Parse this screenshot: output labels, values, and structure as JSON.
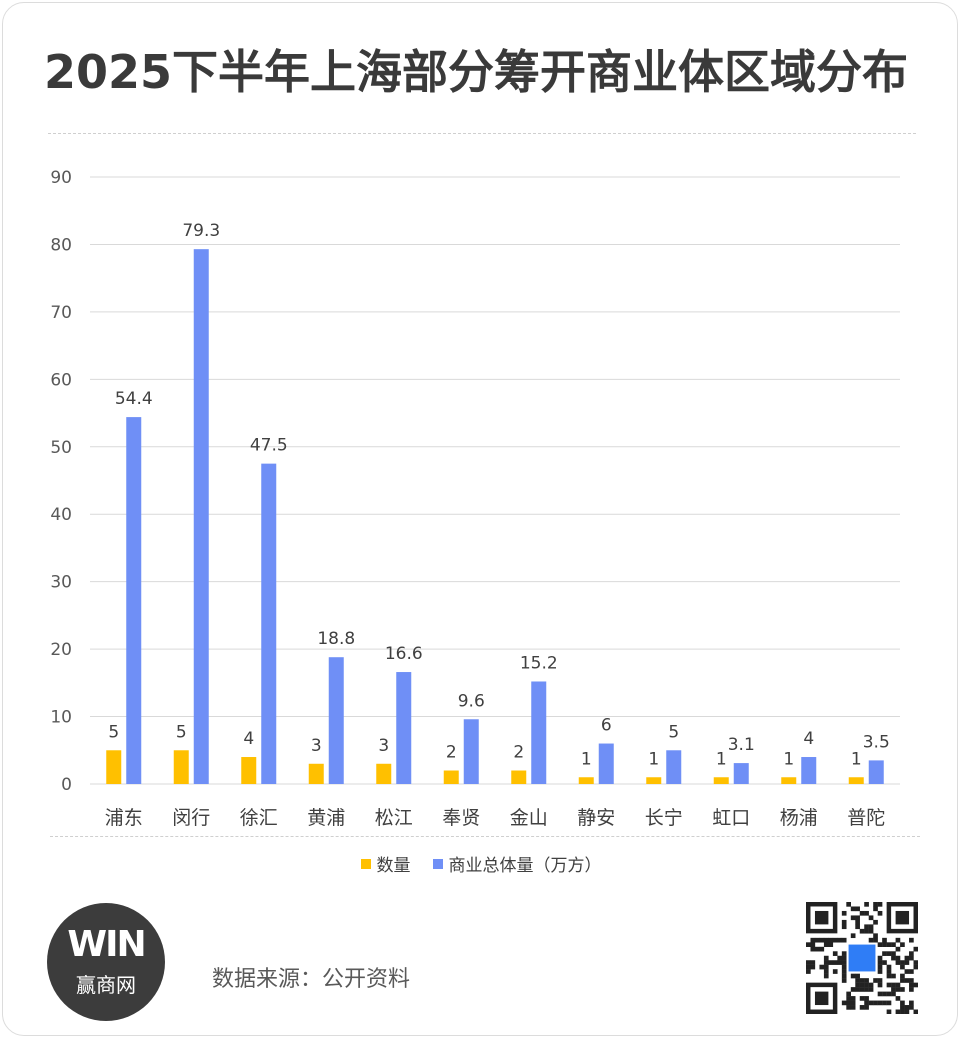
{
  "title": "2025下半年上海部分筹开商业体区域分布",
  "source_text": "数据来源：公开资料",
  "logo": {
    "mark": "WIN",
    "name": "赢商网"
  },
  "colors": {
    "count": "#FFC000",
    "area": "#6F8FF6",
    "grid": "#d9d9d9"
  },
  "icons": {
    "logo": "win-logo-icon",
    "qr": "qr-code-icon"
  },
  "chart_data": {
    "type": "bar",
    "title": "2025下半年上海部分筹开商业体区域分布",
    "categories": [
      "浦东",
      "闵行",
      "徐汇",
      "黄浦",
      "松江",
      "奉贤",
      "金山",
      "静安",
      "长宁",
      "虹口",
      "杨浦",
      "普陀"
    ],
    "series": [
      {
        "name": "数量",
        "values": [
          5,
          5,
          4,
          3,
          3,
          2,
          2,
          1,
          1,
          1,
          1,
          1
        ]
      },
      {
        "name": "商业总体量（万方）",
        "values": [
          54.4,
          79.3,
          47.5,
          18.8,
          16.6,
          9.6,
          15.2,
          6,
          5,
          3.1,
          4,
          3.5
        ]
      }
    ],
    "ylim": [
      0,
      90
    ],
    "yticks": [
      0,
      10,
      20,
      30,
      40,
      50,
      60,
      70,
      80,
      90
    ],
    "grid": true,
    "legend": "bottom"
  }
}
